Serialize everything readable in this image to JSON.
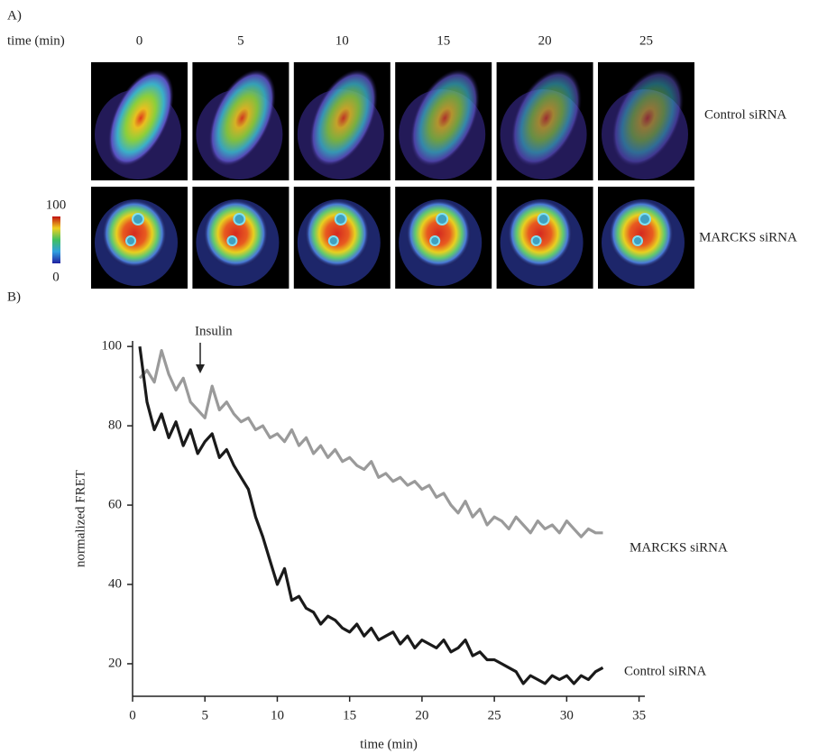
{
  "panel_a": {
    "label": "A)",
    "time_label": "time (min)",
    "times": [
      0,
      5,
      10,
      15,
      20,
      25
    ],
    "rows": [
      "Control siRNA",
      "MARCKS siRNA"
    ],
    "colorbar": {
      "max": 100,
      "min": 0
    }
  },
  "panel_b_label": "B)",
  "chart_data": {
    "type": "line",
    "xlabel": "time (min)",
    "ylabel": "normalized FRET",
    "annotation": "Insulin",
    "x": [
      0.5,
      1,
      1.5,
      2,
      2.5,
      3,
      3.5,
      4,
      4.5,
      5,
      5.5,
      6,
      6.5,
      7,
      7.5,
      8,
      8.5,
      9,
      9.5,
      10,
      10.5,
      11,
      11.5,
      12,
      12.5,
      13,
      13.5,
      14,
      14.5,
      15,
      15.5,
      16,
      16.5,
      17,
      17.5,
      18,
      18.5,
      19,
      19.5,
      20,
      20.5,
      21,
      21.5,
      22,
      22.5,
      23,
      23.5,
      24,
      24.5,
      25,
      25.5,
      26,
      26.5,
      27,
      27.5,
      28,
      28.5,
      29,
      29.5,
      30,
      30.5,
      31,
      31.5,
      32,
      32.5
    ],
    "series": [
      {
        "name": "MARCKS siRNA",
        "color": "#9a9a9a",
        "values": [
          92,
          94,
          91,
          99,
          93,
          89,
          92,
          86,
          84,
          82,
          90,
          84,
          86,
          83,
          81,
          82,
          79,
          80,
          77,
          78,
          76,
          79,
          75,
          77,
          73,
          75,
          72,
          74,
          71,
          72,
          70,
          69,
          71,
          67,
          68,
          66,
          67,
          65,
          66,
          64,
          65,
          62,
          63,
          60,
          58,
          61,
          57,
          59,
          55,
          57,
          56,
          54,
          57,
          55,
          53,
          56,
          54,
          55,
          53,
          56,
          54,
          52,
          54,
          53,
          53
        ]
      },
      {
        "name": "Control siRNA",
        "color": "#1a1a1a",
        "values": [
          100,
          86,
          79,
          83,
          77,
          81,
          75,
          79,
          73,
          76,
          78,
          72,
          74,
          70,
          67,
          64,
          57,
          52,
          46,
          40,
          44,
          36,
          37,
          34,
          33,
          30,
          32,
          31,
          29,
          28,
          30,
          27,
          29,
          26,
          27,
          28,
          25,
          27,
          24,
          26,
          25,
          24,
          26,
          23,
          24,
          26,
          22,
          23,
          21,
          21,
          20,
          19,
          18,
          15,
          17,
          16,
          15,
          17,
          16,
          17,
          15,
          17,
          16,
          18,
          19
        ]
      }
    ],
    "xlim": [
      0,
      35.4
    ],
    "ylim": [
      11.8,
      101.4
    ],
    "xticks": [
      0,
      5,
      10,
      15,
      20,
      25,
      30,
      35
    ],
    "yticks": [
      20,
      40,
      60,
      80,
      100
    ]
  }
}
